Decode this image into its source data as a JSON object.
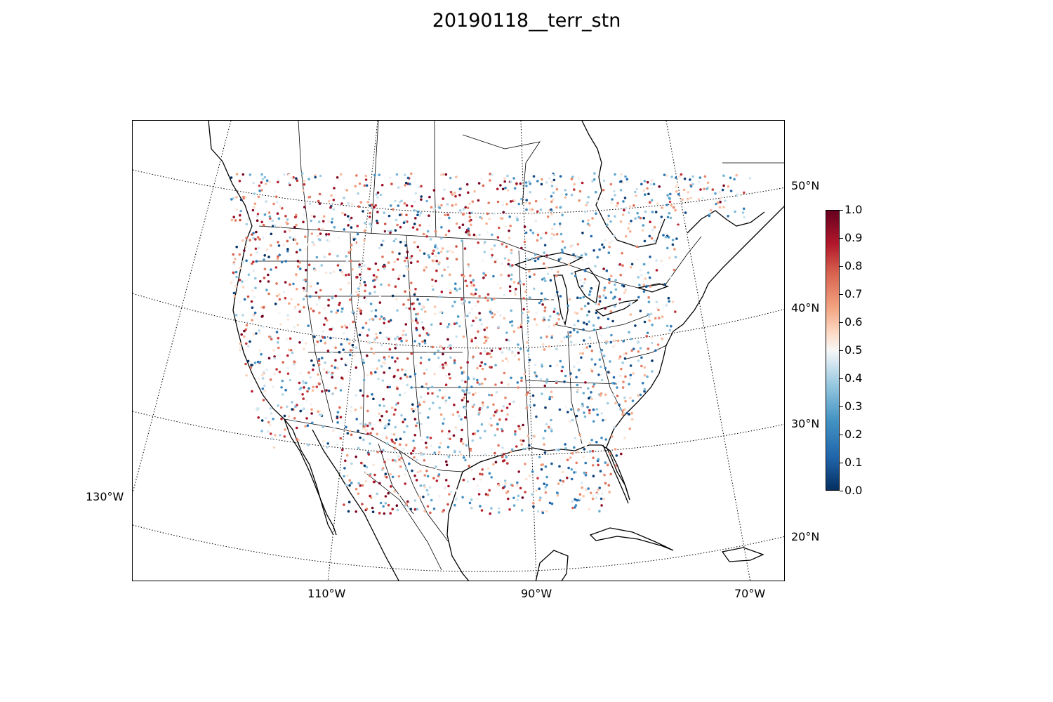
{
  "title": "20190118__terr_stn",
  "map": {
    "projection": "lambert-conformal",
    "lat_labels": [
      "50°N",
      "40°N",
      "30°N",
      "20°N"
    ],
    "lon_labels": [
      "110°W",
      "90°W",
      "70°W"
    ],
    "lon_label_left": "130°W",
    "colors": {
      "coast": "#000000",
      "grid": "#000000",
      "low": "#053061",
      "mid": "#f7f7f7",
      "high": "#67001f"
    }
  },
  "colorbar": {
    "ticks": [
      "0.0",
      "0.1",
      "0.2",
      "0.3",
      "0.4",
      "0.5",
      "0.6",
      "0.7",
      "0.8",
      "0.9",
      "1.0"
    ],
    "cmap": "RdBu_r",
    "range": [
      0.0,
      1.0
    ]
  }
}
